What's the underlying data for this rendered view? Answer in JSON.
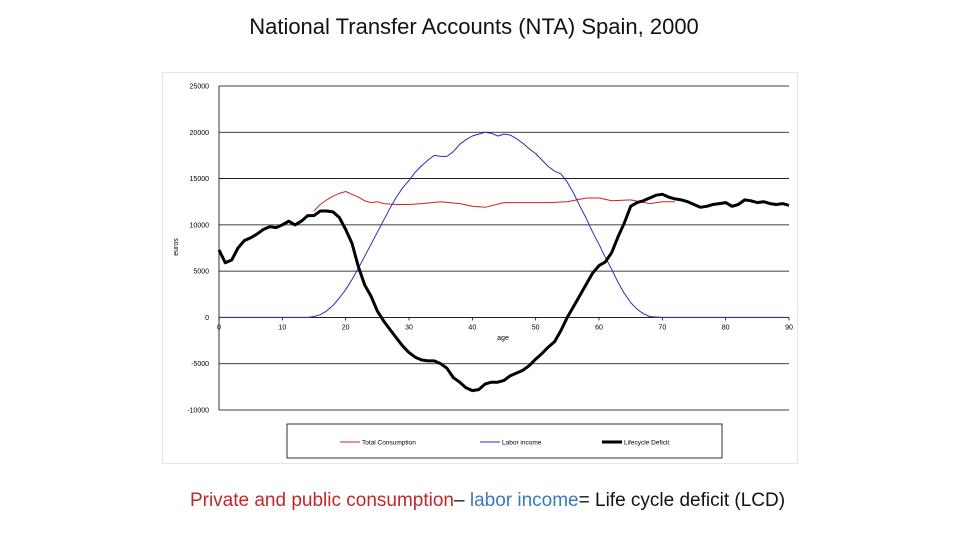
{
  "slide": {
    "title": "National Transfer Accounts (NTA) Spain, 2000"
  },
  "caption": {
    "part1": "Private and public consumption",
    "op1": "– ",
    "part2": "labor income",
    "op2": "= ",
    "part3": "Life cycle deficit (LCD)"
  },
  "colors": {
    "consumption": "#cc2222",
    "labor": "#2233bb",
    "lcd": "#000000",
    "caption_red": "#c0282a",
    "caption_blue": "#3a78c0",
    "grid": "#000000"
  },
  "chart_data": {
    "type": "line",
    "title": "",
    "xlabel": "age",
    "ylabel": "euros",
    "xlim": [
      0,
      90
    ],
    "ylim": [
      -10000,
      25000
    ],
    "xticks": [
      0,
      10,
      20,
      30,
      40,
      50,
      60,
      70,
      80,
      90
    ],
    "yticks": [
      -10000,
      -5000,
      0,
      5000,
      10000,
      15000,
      20000,
      25000
    ],
    "ytick_labels": [
      "-10000",
      "-5000",
      "0",
      "5000",
      "10000",
      "15000",
      "20000",
      "25000"
    ],
    "legend_position": "bottom",
    "series": [
      {
        "name": "Total Consumption",
        "x": [
          15,
          16,
          17,
          18,
          19,
          20,
          21,
          22,
          23,
          24,
          25,
          26,
          28,
          30,
          32,
          35,
          38,
          40,
          42,
          45,
          48,
          50,
          52,
          55,
          58,
          60,
          62,
          65,
          68,
          70,
          72
        ],
        "values": [
          11500,
          12200,
          12700,
          13100,
          13400,
          13600,
          13300,
          13000,
          12600,
          12400,
          12500,
          12300,
          12200,
          12200,
          12300,
          12500,
          12300,
          12000,
          11900,
          12400,
          12400,
          12400,
          12400,
          12500,
          12900,
          12900,
          12600,
          12700,
          12300,
          12500,
          12500
        ]
      },
      {
        "name": "Labor income",
        "x": [
          0,
          14,
          15,
          16,
          17,
          18,
          19,
          20,
          21,
          22,
          23,
          24,
          25,
          26,
          27,
          28,
          29,
          30,
          31,
          32,
          33,
          34,
          35,
          36,
          37,
          38,
          39,
          40,
          41,
          42,
          43,
          44,
          45,
          46,
          47,
          48,
          49,
          50,
          51,
          52,
          53,
          54,
          55,
          56,
          57,
          58,
          59,
          60,
          61,
          62,
          63,
          64,
          65,
          66,
          67,
          68,
          69,
          70,
          71,
          75,
          80,
          85,
          90
        ],
        "values": [
          0,
          0,
          100,
          300,
          700,
          1300,
          2100,
          3000,
          4100,
          5300,
          6600,
          7900,
          9200,
          10500,
          11800,
          13000,
          14000,
          14800,
          15700,
          16400,
          17000,
          17500,
          17400,
          17400,
          17900,
          18700,
          19200,
          19600,
          19800,
          20000,
          19900,
          19600,
          19800,
          19700,
          19300,
          18800,
          18200,
          17700,
          17000,
          16300,
          15800,
          15500,
          14600,
          13400,
          12000,
          10700,
          9200,
          7900,
          6500,
          5200,
          3800,
          2600,
          1600,
          900,
          400,
          100,
          50,
          0,
          0,
          0,
          0,
          0,
          0
        ]
      },
      {
        "name": "Lifecycle Deficit",
        "x": [
          0,
          1,
          2,
          3,
          4,
          5,
          6,
          7,
          8,
          9,
          10,
          11,
          12,
          13,
          14,
          15,
          16,
          17,
          18,
          19,
          20,
          21,
          22,
          23,
          24,
          25,
          26,
          27,
          28,
          29,
          30,
          31,
          32,
          33,
          34,
          35,
          36,
          37,
          38,
          39,
          40,
          41,
          42,
          43,
          44,
          45,
          46,
          47,
          48,
          49,
          50,
          51,
          52,
          53,
          54,
          55,
          56,
          57,
          58,
          59,
          60,
          61,
          62,
          63,
          64,
          65,
          66,
          67,
          68,
          69,
          70,
          71,
          72,
          73,
          74,
          75,
          76,
          77,
          78,
          79,
          80,
          81,
          82,
          83,
          84,
          85,
          86,
          87,
          88,
          89,
          90
        ],
        "values": [
          7300,
          5900,
          6200,
          7500,
          8300,
          8600,
          9000,
          9500,
          9800,
          9700,
          10000,
          10400,
          10000,
          10400,
          11000,
          11000,
          11500,
          11500,
          11400,
          10800,
          9500,
          8000,
          5500,
          3500,
          2300,
          700,
          -400,
          -1300,
          -2200,
          -3100,
          -3800,
          -4300,
          -4600,
          -4700,
          -4700,
          -5000,
          -5500,
          -6500,
          -7000,
          -7600,
          -7900,
          -7800,
          -7200,
          -7000,
          -7000,
          -6800,
          -6300,
          -6000,
          -5700,
          -5200,
          -4500,
          -3900,
          -3200,
          -2600,
          -1400,
          0,
          1200,
          2400,
          3600,
          4800,
          5600,
          6000,
          7000,
          8700,
          10200,
          12000,
          12400,
          12600,
          12900,
          13200,
          13300,
          13000,
          12800,
          12700,
          12500,
          12200,
          11900,
          12000,
          12200,
          12300,
          12400,
          12000,
          12200,
          12700,
          12600,
          12400,
          12500,
          12300,
          12200,
          12300,
          12100
        ]
      }
    ]
  }
}
